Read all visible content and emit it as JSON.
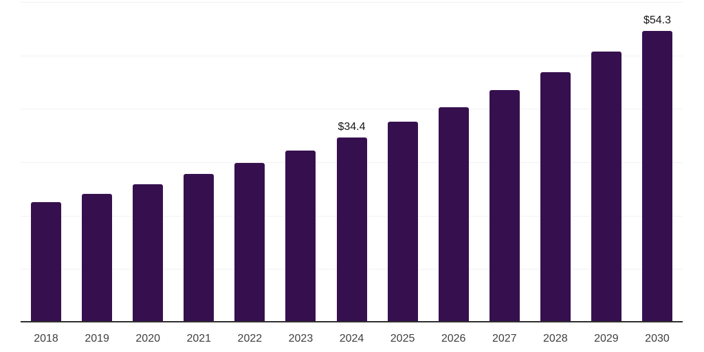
{
  "chart_data": {
    "type": "bar",
    "title": "",
    "xlabel": "",
    "ylabel": "",
    "categories": [
      "2018",
      "2019",
      "2020",
      "2021",
      "2022",
      "2023",
      "2024",
      "2025",
      "2026",
      "2027",
      "2028",
      "2029",
      "2030"
    ],
    "values": [
      22.3,
      23.8,
      25.6,
      27.5,
      29.6,
      31.9,
      34.4,
      37.3,
      40.1,
      43.2,
      46.6,
      50.5,
      54.3
    ],
    "labeled_points": [
      {
        "category": "2024",
        "label": "$34.4"
      },
      {
        "category": "2030",
        "label": "$54.3"
      }
    ],
    "ylim": [
      0,
      60
    ],
    "gridlines": [
      0,
      10,
      20,
      30,
      40,
      50,
      60
    ],
    "grid": "horizontal-only",
    "legend": "none",
    "bar_color": "#36104e"
  },
  "colors": {
    "bar": "#36104e",
    "gridline": "#f2f2f2",
    "axis_line": "#2e2e2e",
    "tick_label": "#3f3f3f",
    "data_label": "#151515",
    "background": "#ffffff"
  }
}
